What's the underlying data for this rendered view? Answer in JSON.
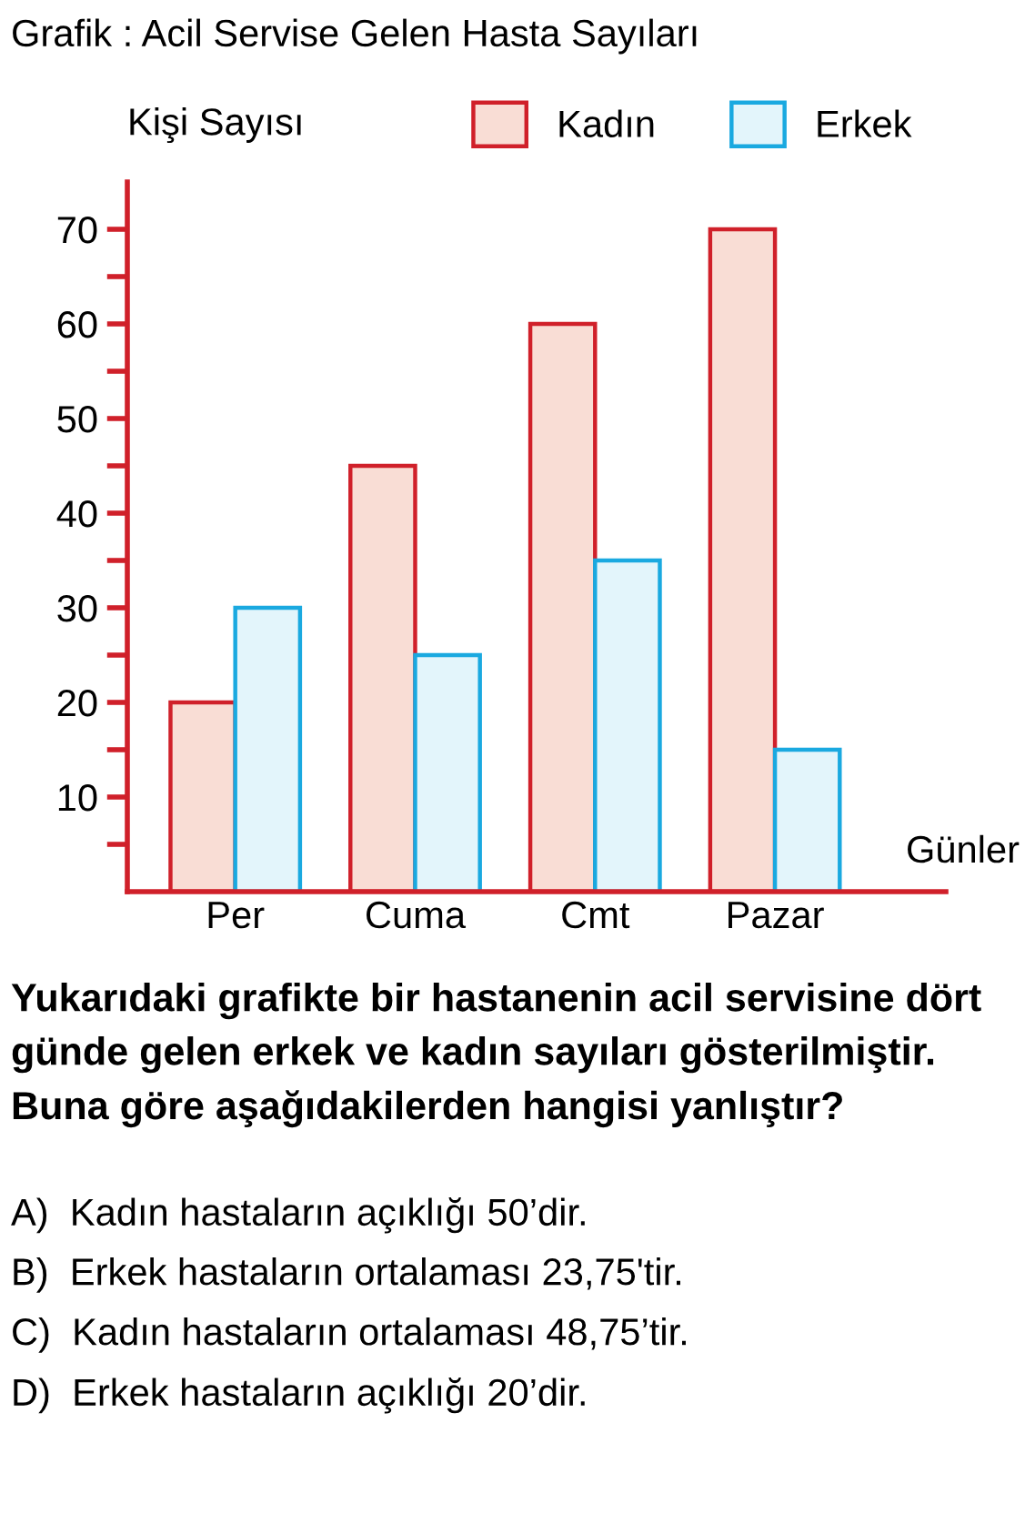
{
  "chart_data": {
    "type": "bar",
    "title": "Grafik : Acil Servise Gelen Hasta Sayıları",
    "ylabel": "Kişi Sayısı",
    "xlabel": "Günler",
    "categories": [
      "Per",
      "Cuma",
      "Cmt",
      "Pazar"
    ],
    "series": [
      {
        "name": "Kadın",
        "color": "#f9ddd5",
        "values": [
          20,
          45,
          60,
          70
        ]
      },
      {
        "name": "Erkek",
        "color": "#e3f5fb",
        "values": [
          30,
          25,
          35,
          15
        ]
      }
    ],
    "ylim": [
      0,
      75
    ],
    "yticks": [
      {
        "value": 5,
        "label": null
      },
      10,
      {
        "value": 15,
        "label": null
      },
      20,
      {
        "value": 25,
        "label": null
      },
      30,
      {
        "value": 35,
        "label": null
      },
      40,
      {
        "value": 45,
        "label": null
      },
      50,
      {
        "value": 55,
        "label": null
      },
      60,
      {
        "value": 65,
        "label": null
      },
      70
    ],
    "grid": false,
    "legend": "top right",
    "annotations": [
      "Yukarıdaki grafikte bir hastanenin acil servisine dört günde gelen erkek ve kadın sayıları gösterilmiştir. Buna göre aşağıdakilerden hangisi yanlıştır?",
      "A)  Kadın hastaların açıklığı 50’dir.",
      "B)  Erkek hastaların ortalaması 23,75'tir.",
      "C)  Kadın hastaların ortalaması 48,75’tir.",
      "D)  Erkek hastaların açıklığı 20’dir."
    ]
  }
}
